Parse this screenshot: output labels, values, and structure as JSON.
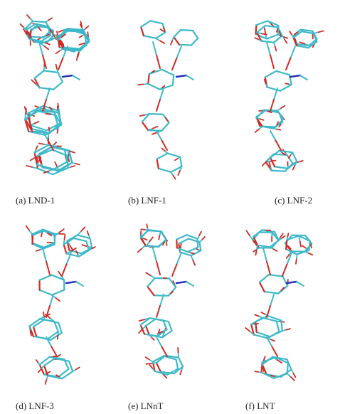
{
  "panels": [
    {
      "label": "(a) LND-1"
    },
    {
      "label": "(b) LNF-1"
    },
    {
      "label": "(c) LNF-2"
    },
    {
      "label": "(d) LNF-3"
    },
    {
      "label": "(e) LNnT"
    },
    {
      "label": "(f) LNT"
    }
  ]
}
